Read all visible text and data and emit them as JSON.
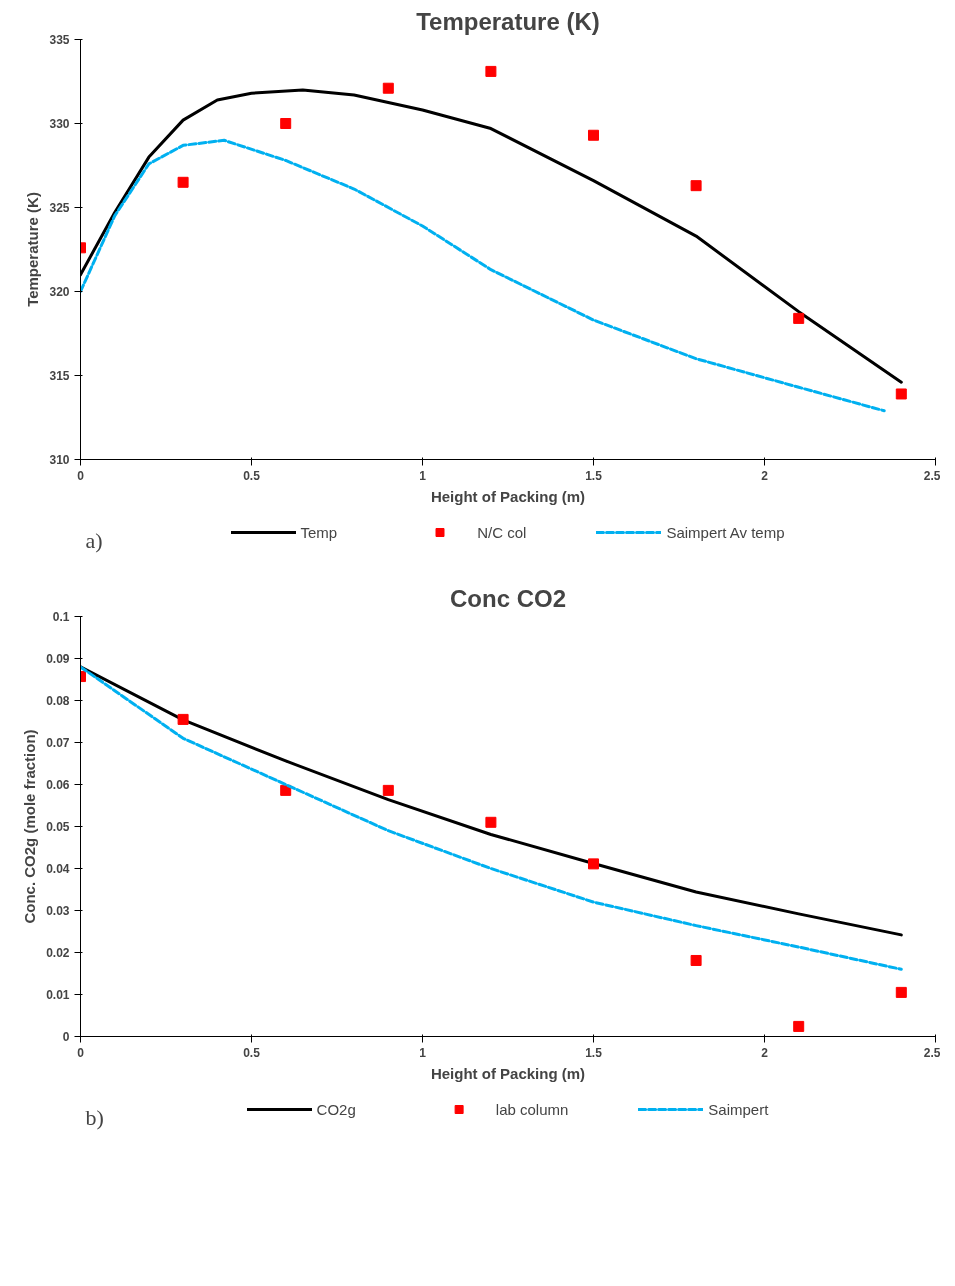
{
  "chart_data": [
    {
      "type": "line",
      "title": "Temperature (K)",
      "xlabel": "Height of Packing (m)",
      "ylabel": "Temperature (K)",
      "annotations": [
        "a)"
      ],
      "xlim": [
        0,
        2.5
      ],
      "xticks": [
        0,
        0.5,
        1,
        1.5,
        2,
        2.5
      ],
      "ylim": [
        310,
        335
      ],
      "yticks": [
        310,
        315,
        320,
        325,
        330,
        335
      ],
      "grid": false,
      "legend": "bottom",
      "series": [
        {
          "name": "Temp",
          "type": "line",
          "line_style": "solid",
          "color": "#000000",
          "x": [
            0,
            0.1,
            0.2,
            0.3,
            0.4,
            0.5,
            0.65,
            0.8,
            1.0,
            1.2,
            1.5,
            1.8,
            2.1,
            2.4
          ],
          "values": [
            321,
            324.7,
            328.0,
            330.2,
            331.4,
            331.8,
            332.0,
            331.7,
            330.8,
            329.7,
            326.6,
            323.3,
            318.8,
            314.6
          ]
        },
        {
          "name": "N/C col",
          "type": "scatter",
          "marker": "square",
          "color": "#ff0000",
          "x": [
            0,
            0.3,
            0.6,
            0.9,
            1.2,
            1.5,
            1.8,
            2.1,
            2.4
          ],
          "values": [
            322.6,
            326.5,
            330,
            332.1,
            333.1,
            329.3,
            326.3,
            318.4,
            313.9
          ]
        },
        {
          "name": "Saimpert Av temp",
          "type": "line",
          "line_style": "dashed",
          "color": "#00b0f0",
          "x": [
            0,
            0.1,
            0.2,
            0.3,
            0.42,
            0.6,
            0.8,
            1.0,
            1.2,
            1.5,
            1.8,
            2.1,
            2.35
          ],
          "values": [
            320.0,
            324.5,
            327.6,
            328.7,
            329.0,
            327.8,
            326.1,
            323.9,
            321.3,
            318.3,
            316.0,
            314.3,
            312.9
          ]
        }
      ]
    },
    {
      "type": "line",
      "title": "Conc CO2",
      "xlabel": "Height of Packing (m)",
      "ylabel": "Conc. CO2g (mole fraction)",
      "annotations": [
        "b)"
      ],
      "xlim": [
        0,
        2.5
      ],
      "xticks": [
        0,
        0.5,
        1,
        1.5,
        2,
        2.5
      ],
      "ylim": [
        0,
        0.1
      ],
      "yticks": [
        0,
        0.01,
        0.02,
        0.03,
        0.04,
        0.05,
        0.06,
        0.07,
        0.08,
        0.09,
        0.1
      ],
      "grid": false,
      "legend": "bottom",
      "series": [
        {
          "name": "CO2g",
          "type": "line",
          "line_style": "solid",
          "color": "#000000",
          "x": [
            0,
            0.3,
            0.6,
            0.9,
            1.2,
            1.5,
            1.8,
            2.1,
            2.4
          ],
          "values": [
            0.088,
            0.0754,
            0.0656,
            0.0564,
            0.0481,
            0.0412,
            0.0344,
            0.0292,
            0.0242
          ]
        },
        {
          "name": "lab column",
          "type": "scatter",
          "marker": "square",
          "color": "#ff0000",
          "x": [
            0,
            0.3,
            0.6,
            0.9,
            1.2,
            1.5,
            1.8,
            2.1,
            2.4
          ],
          "values": [
            0.0857,
            0.0755,
            0.0586,
            0.0586,
            0.051,
            0.0411,
            0.0181,
            0.0024,
            0.0105
          ]
        },
        {
          "name": "Saimpert",
          "type": "line",
          "line_style": "dashed",
          "color": "#00b0f0",
          "x": [
            0,
            0.3,
            0.6,
            0.9,
            1.2,
            1.5,
            1.8,
            2.1,
            2.4
          ],
          "values": [
            0.088,
            0.071,
            0.06,
            0.049,
            0.04,
            0.032,
            0.0264,
            0.0213,
            0.016
          ]
        }
      ]
    }
  ]
}
